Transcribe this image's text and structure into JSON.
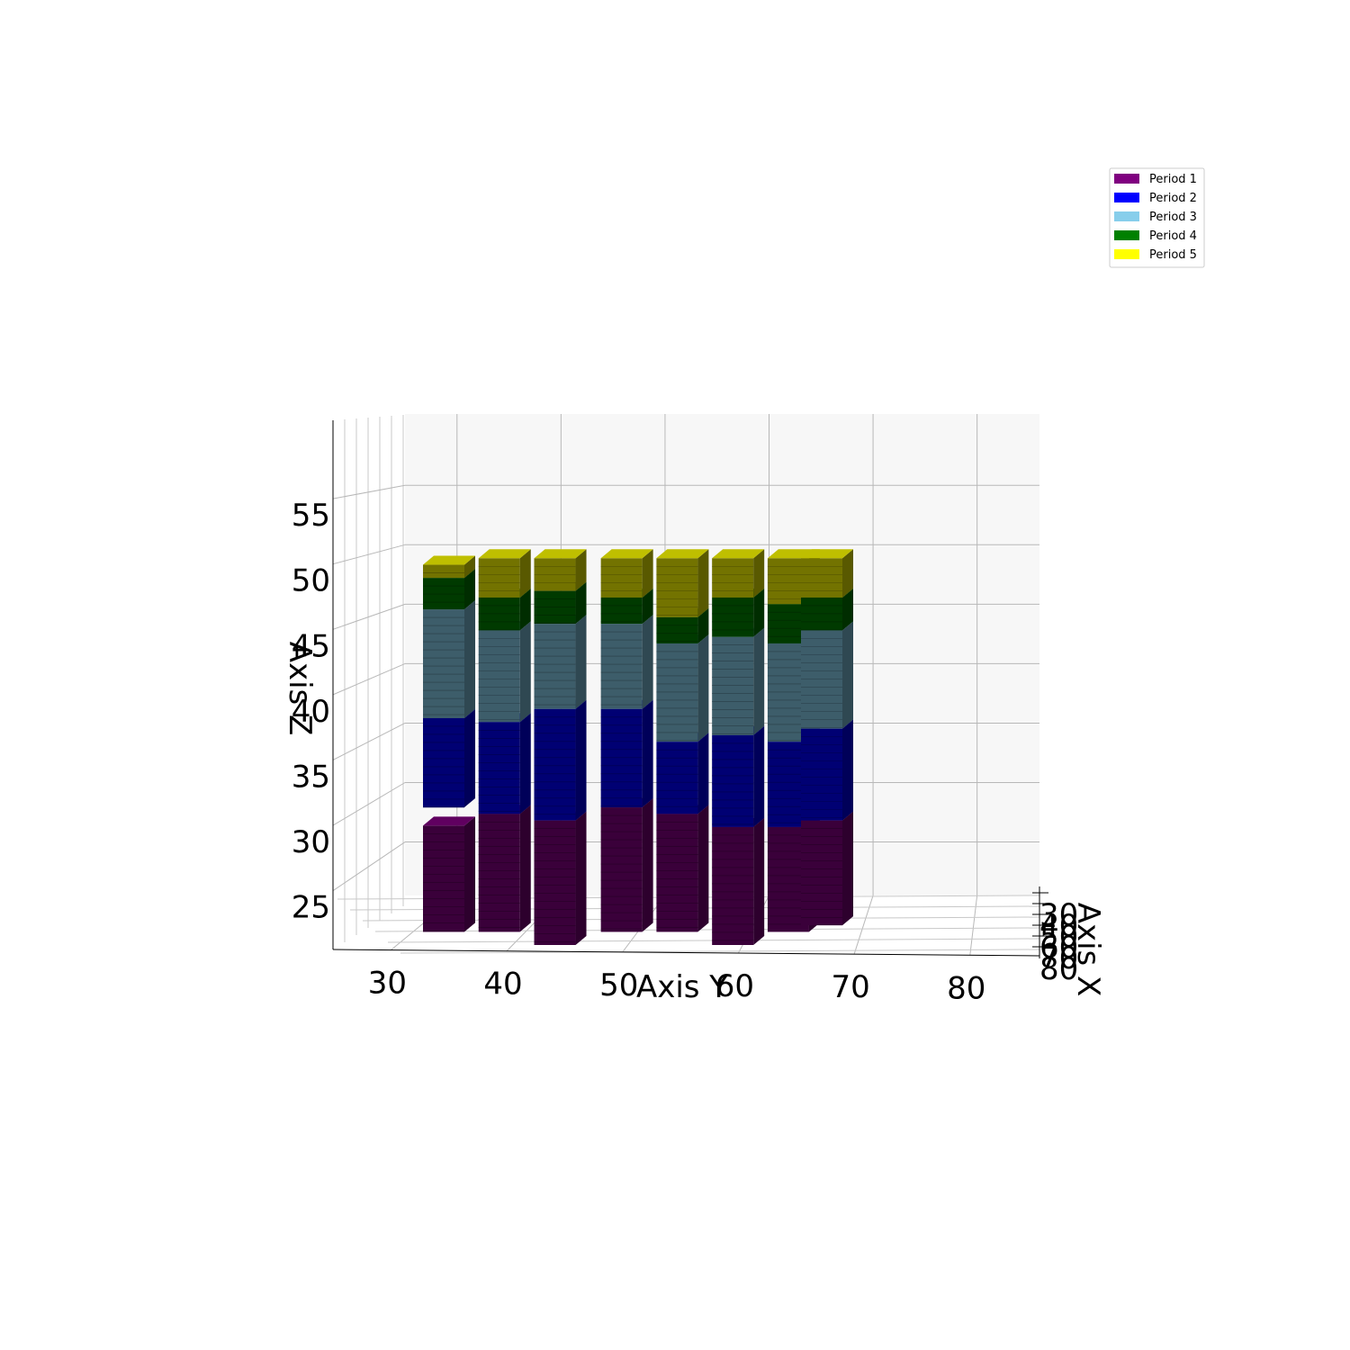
{
  "chart_data": {
    "type": "bar3d",
    "x_axis": {
      "label": "Axis X",
      "ticks": [
        30,
        40,
        50,
        60,
        70,
        80
      ]
    },
    "y_axis": {
      "label": "Axis Y",
      "ticks": [
        30,
        40,
        50,
        60,
        70,
        80
      ],
      "range": [
        25,
        86
      ]
    },
    "z_axis": {
      "label": "Axis Z",
      "ticks": [
        25,
        30,
        35,
        40,
        45,
        50,
        55
      ],
      "range": [
        20.5,
        61
      ]
    },
    "grid": true,
    "legend": {
      "position": "top-right",
      "entries": [
        {
          "name": "Period 1",
          "color": "#800080"
        },
        {
          "name": "Period 2",
          "color": "#0000ff"
        },
        {
          "name": "Period 3",
          "color": "#87ceeb"
        },
        {
          "name": "Period 4",
          "color": "#008000"
        },
        {
          "name": "Period 5",
          "color": "#ffff00"
        }
      ]
    },
    "columns": [
      {
        "y": 33,
        "segments": [
          [
            1,
            21.5,
            29.6
          ],
          [
            2,
            31.0,
            37.8
          ],
          [
            3,
            37.8,
            46.1
          ],
          [
            4,
            46.1,
            48.5
          ],
          [
            5,
            48.5,
            49.5
          ]
        ]
      },
      {
        "y": 38,
        "segments": [
          [
            1,
            21.5,
            30.5
          ],
          [
            2,
            30.5,
            37.5
          ],
          [
            3,
            37.5,
            44.5
          ],
          [
            4,
            44.5,
            47.0
          ],
          [
            5,
            47.0,
            50.0
          ]
        ]
      },
      {
        "y": 43,
        "segments": [
          [
            1,
            20.5,
            30.0
          ],
          [
            2,
            30.0,
            38.5
          ],
          [
            3,
            38.5,
            45.0
          ],
          [
            4,
            45.0,
            47.5
          ],
          [
            5,
            47.5,
            50.0
          ]
        ]
      },
      {
        "y": 49,
        "segments": [
          [
            1,
            21.5,
            31.0
          ],
          [
            2,
            31.0,
            38.5
          ],
          [
            3,
            38.5,
            45.0
          ],
          [
            4,
            45.0,
            47.0
          ],
          [
            5,
            47.0,
            50.0
          ]
        ]
      },
      {
        "y": 54,
        "segments": [
          [
            1,
            21.5,
            30.5
          ],
          [
            2,
            30.5,
            36.0
          ],
          [
            3,
            36.0,
            43.5
          ],
          [
            4,
            43.5,
            45.5
          ],
          [
            5,
            45.5,
            50.0
          ]
        ]
      },
      {
        "y": 59,
        "segments": [
          [
            1,
            20.5,
            29.5
          ],
          [
            2,
            29.5,
            36.5
          ],
          [
            3,
            36.5,
            44.0
          ],
          [
            4,
            44.0,
            47.0
          ],
          [
            5,
            47.0,
            50.0
          ]
        ]
      },
      {
        "y": 64,
        "segments": [
          [
            1,
            21.5,
            29.5
          ],
          [
            2,
            29.5,
            36.0
          ],
          [
            3,
            36.0,
            43.5
          ],
          [
            4,
            43.5,
            46.5
          ],
          [
            5,
            46.5,
            50.0
          ]
        ]
      },
      {
        "y": 67,
        "segments": [
          [
            1,
            22.0,
            30.0
          ],
          [
            2,
            30.0,
            37.0
          ],
          [
            3,
            37.0,
            44.5
          ],
          [
            4,
            44.5,
            47.0
          ],
          [
            5,
            47.0,
            50.0
          ]
        ]
      }
    ]
  }
}
